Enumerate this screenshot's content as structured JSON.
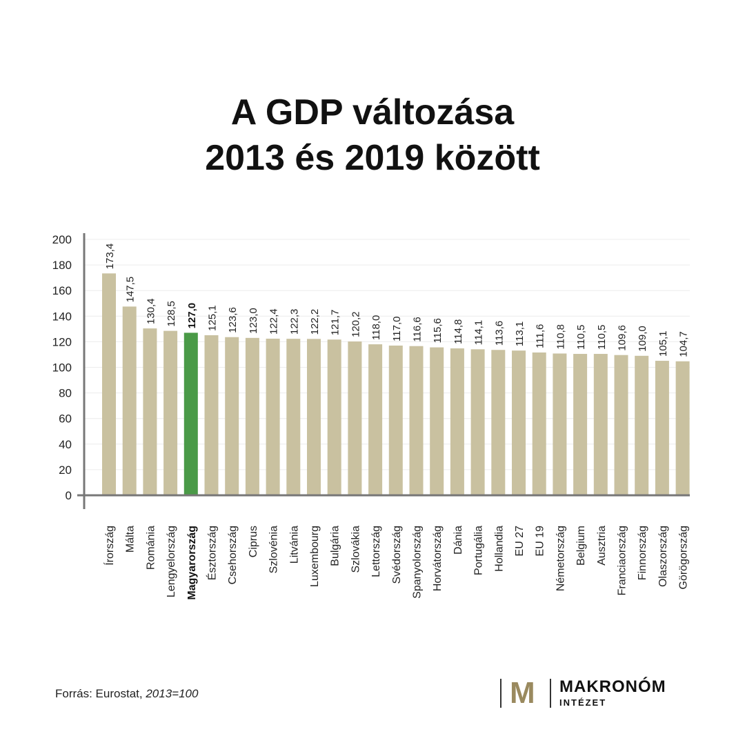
{
  "title_line1": "A GDP változása",
  "title_line2": "2013 és 2019 között",
  "source_prefix": "Forrás: Eurostat, ",
  "source_note": "2013=100",
  "logo": {
    "mark": "M",
    "name": "MAKRONÓM",
    "sub": "INTÉZET"
  },
  "colors": {
    "bar": "#c9c1a0",
    "highlight": "#4a9a47",
    "logo_mark": "#9a8a5f"
  },
  "chart_data": {
    "type": "bar",
    "title": "A GDP változása 2013 és 2019 között",
    "ylim": [
      0,
      200
    ],
    "yticks": [
      0,
      20,
      40,
      60,
      80,
      100,
      120,
      140,
      160,
      180,
      200
    ],
    "grid": true,
    "categories": [
      "Írország",
      "Málta",
      "Románia",
      "Lengyelország",
      "Magyarország",
      "Észtország",
      "Csehország",
      "Ciprus",
      "Szlovénia",
      "Litvánia",
      "Luxembourg",
      "Bulgária",
      "Szlovákia",
      "Lettország",
      "Svédország",
      "Spanyolország",
      "Horvátország",
      "Dánia",
      "Portugália",
      "Hollandia",
      "EU 27",
      "EU 19",
      "Németország",
      "Belgium",
      "Ausztria",
      "Franciaország",
      "Finnország",
      "Olaszország",
      "Görögország"
    ],
    "values": [
      173.4,
      147.5,
      130.4,
      128.5,
      127.0,
      125.1,
      123.6,
      123.0,
      122.4,
      122.3,
      122.2,
      121.7,
      120.2,
      118.0,
      117.0,
      116.6,
      115.6,
      114.8,
      114.1,
      113.6,
      113.1,
      111.6,
      110.8,
      110.5,
      110.5,
      109.6,
      109.0,
      105.1,
      104.7
    ],
    "value_labels": [
      "173,4",
      "147,5",
      "130,4",
      "128,5",
      "127,0",
      "125,1",
      "123,6",
      "123,0",
      "122,4",
      "122,3",
      "122,2",
      "121,7",
      "120,2",
      "118,0",
      "117,0",
      "116,6",
      "115,6",
      "114,8",
      "114,1",
      "113,6",
      "113,1",
      "111,6",
      "110,8",
      "110,5",
      "110,5",
      "109,6",
      "109,0",
      "105,1",
      "104,7"
    ],
    "highlight": "Magyarország"
  }
}
